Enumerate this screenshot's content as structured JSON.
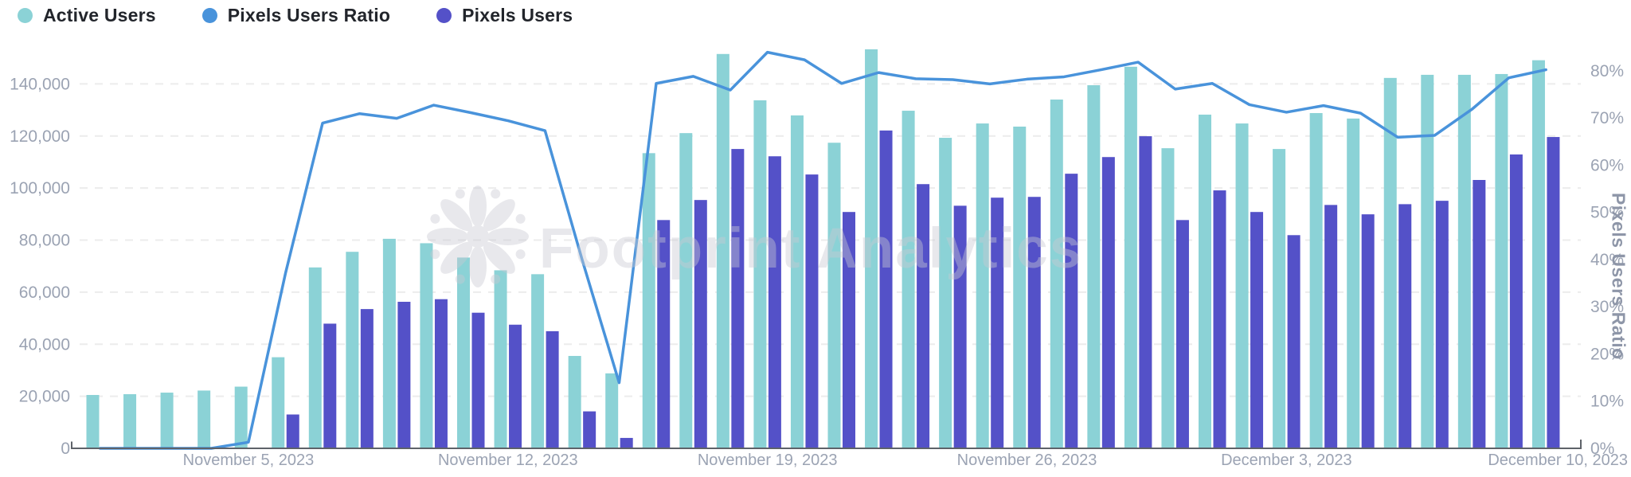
{
  "legend": {
    "items": [
      {
        "label": "Active Users",
        "color": "#8BD2D6"
      },
      {
        "label": "Pixels Users Ratio",
        "color": "#4993DB"
      },
      {
        "label": "Pixels Users",
        "color": "#5451C8"
      }
    ]
  },
  "watermark": {
    "icon": "footprint-flower-icon",
    "text": "Footprint Analytics",
    "color": "#C9CAD2"
  },
  "axes": {
    "left": {
      "ticks": [
        {
          "value": 0,
          "label": "0"
        },
        {
          "value": 20000,
          "label": "20,000"
        },
        {
          "value": 40000,
          "label": "40,000"
        },
        {
          "value": 60000,
          "label": "60,000"
        },
        {
          "value": 80000,
          "label": "80,000"
        },
        {
          "value": 100000,
          "label": "100,000"
        },
        {
          "value": 120000,
          "label": "120,000"
        },
        {
          "value": 140000,
          "label": "140,000"
        }
      ]
    },
    "right": {
      "title": "Pixels Users Ratio",
      "ticks": [
        {
          "value": 0,
          "label": "0%"
        },
        {
          "value": 10,
          "label": "10%"
        },
        {
          "value": 20,
          "label": "20%"
        },
        {
          "value": 30,
          "label": "30%"
        },
        {
          "value": 40,
          "label": "40%"
        },
        {
          "value": 50,
          "label": "50%"
        },
        {
          "value": 60,
          "label": "60%"
        },
        {
          "value": 70,
          "label": "70%"
        },
        {
          "value": 80,
          "label": "80%"
        }
      ]
    },
    "x": {
      "ticks": [
        {
          "index": 4,
          "label": "November 5, 2023",
          "align": "center"
        },
        {
          "index": 11,
          "label": "November 12, 2023",
          "align": "center"
        },
        {
          "index": 18,
          "label": "November 19, 2023",
          "align": "center"
        },
        {
          "index": 25,
          "label": "November 26, 2023",
          "align": "center"
        },
        {
          "index": 32,
          "label": "December 3, 2023",
          "align": "center"
        },
        {
          "index": 39,
          "label": "December 10, 2023",
          "align": "right"
        }
      ]
    }
  },
  "colors": {
    "grid": "#ECECEC",
    "axis_line": "#5E6269",
    "tick_text": "#9BA3B3",
    "background": "#FFFFFF"
  },
  "chart_data": {
    "type": "bar+line",
    "title": "",
    "x_dates": [
      "2023-11-01",
      "2023-11-02",
      "2023-11-03",
      "2023-11-04",
      "2023-11-05",
      "2023-11-06",
      "2023-11-07",
      "2023-11-08",
      "2023-11-09",
      "2023-11-10",
      "2023-11-11",
      "2023-11-12",
      "2023-11-13",
      "2023-11-14",
      "2023-11-15",
      "2023-11-16",
      "2023-11-17",
      "2023-11-18",
      "2023-11-19",
      "2023-11-20",
      "2023-11-21",
      "2023-11-22",
      "2023-11-23",
      "2023-11-24",
      "2023-11-25",
      "2023-11-26",
      "2023-11-27",
      "2023-11-28",
      "2023-11-29",
      "2023-11-30",
      "2023-12-01",
      "2023-12-02",
      "2023-12-03",
      "2023-12-04",
      "2023-12-05",
      "2023-12-06",
      "2023-12-07",
      "2023-12-08",
      "2023-12-09",
      "2023-12-10"
    ],
    "x_tick_labels_shown": [
      "November 5, 2023",
      "November 12, 2023",
      "November 19, 2023",
      "November 26, 2023",
      "December 3, 2023",
      "December 10, 2023"
    ],
    "left_ylim": [
      0,
      160000
    ],
    "right_ylim": [
      0,
      88.2
    ],
    "grid": "dashed-horizontal",
    "legend_position": "top-left",
    "series": [
      {
        "name": "Active Users",
        "type": "bar",
        "axis": "left",
        "color": "#8BD2D6",
        "values": [
          20500,
          20800,
          21400,
          22200,
          23700,
          35000,
          69500,
          75500,
          80500,
          78800,
          73300,
          68400,
          66900,
          35500,
          28800,
          113400,
          121100,
          151500,
          133700,
          127900,
          117400,
          153300,
          129700,
          119300,
          124800,
          123600,
          134000,
          139500,
          146600,
          115300,
          128200,
          124800,
          115000,
          128800,
          126700,
          142300,
          143500,
          143500,
          143800,
          149100
        ]
      },
      {
        "name": "Pixels Users",
        "type": "bar",
        "axis": "left",
        "color": "#5451C8",
        "values": [
          0,
          0,
          0,
          0,
          300,
          13000,
          47900,
          53500,
          56300,
          57300,
          52100,
          47500,
          45000,
          14200,
          4000,
          87700,
          95400,
          115000,
          112200,
          105200,
          90800,
          122100,
          101500,
          93200,
          96300,
          96600,
          105500,
          111900,
          119900,
          87700,
          99100,
          90800,
          81900,
          93500,
          89900,
          93800,
          95100,
          103100,
          112900,
          119600
        ]
      },
      {
        "name": "Pixels Users Ratio",
        "type": "line",
        "axis": "right",
        "color": "#4993DB",
        "unit": "%",
        "values": [
          0,
          0,
          0,
          0,
          1.3,
          37.1,
          68.9,
          70.9,
          69.9,
          72.7,
          71.1,
          69.4,
          67.3,
          40.0,
          13.9,
          77.3,
          78.8,
          75.9,
          83.9,
          82.3,
          77.3,
          79.6,
          78.3,
          78.1,
          77.2,
          78.2,
          78.7,
          80.2,
          81.8,
          76.1,
          77.3,
          72.8,
          71.2,
          72.6,
          71.0,
          65.9,
          66.3,
          71.8,
          78.5,
          80.2
        ]
      }
    ]
  }
}
